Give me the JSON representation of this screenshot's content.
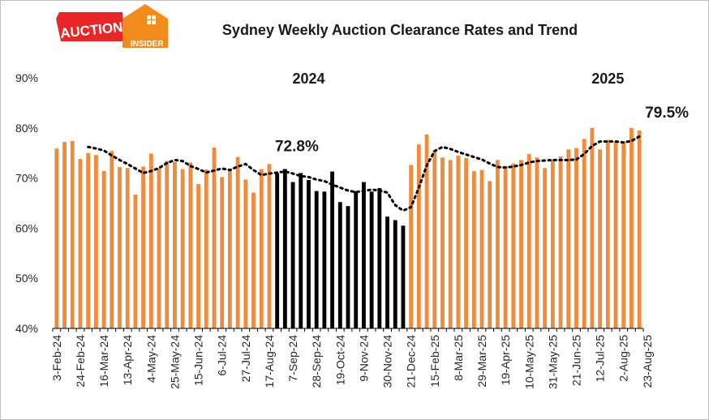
{
  "logo": {
    "line1": "AUCTION",
    "line2": "INSIDER",
    "colors": {
      "red": "#e8262a",
      "orange": "#f28c1c",
      "white": "#ffffff"
    }
  },
  "chart_data": {
    "type": "bar",
    "title": "Sydney Weekly Auction  Clearance Rates and Trend",
    "ylim": [
      40,
      90
    ],
    "yticks": [
      "40%",
      "50%",
      "60%",
      "70%",
      "80%",
      "90%"
    ],
    "grid": false,
    "x_tick_labels": [
      "3-Feb-24",
      "24-Feb-24",
      "16-Mar-24",
      "13-Apr-24",
      "4-May-24",
      "25-May-24",
      "15-Jun-24",
      "6-Jul-24",
      "27-Jul-24",
      "17-Aug-24",
      "7-Sep-24",
      "28-Sep-24",
      "19-Oct-24",
      "9-Nov-24",
      "30-Nov-24",
      "21-Dec-24",
      "15-Feb-25",
      "8-Mar-25",
      "29-Mar-25",
      "19-Apr-25",
      "10-May-25",
      "31-May-25",
      "21-Jun-25",
      "12-Jul-25",
      "2-Aug-25",
      "23-Aug-25"
    ],
    "values": [
      75.9,
      77.2,
      77.4,
      73.8,
      75.0,
      74.6,
      71.4,
      75.4,
      72.2,
      72.0,
      66.7,
      72.3,
      74.9,
      71.9,
      73.4,
      73.2,
      71.8,
      73.1,
      68.8,
      71.7,
      76.1,
      70.2,
      71.6,
      74.2,
      69.7,
      67.1,
      71.8,
      72.8,
      71.0,
      71.8,
      69.2,
      71.0,
      69.6,
      67.4,
      67.3,
      71.3,
      65.2,
      64.4,
      67.4,
      69.2,
      67.3,
      68.0,
      62.3,
      61.6,
      60.5,
      72.6,
      76.7,
      78.7,
      75.5,
      74.1,
      73.6,
      74.5,
      74.0,
      71.4,
      71.6,
      69.4,
      73.6,
      72.4,
      72.9,
      73.6,
      74.8,
      74.1,
      72.0,
      73.6,
      74.3,
      75.7,
      76.0,
      77.8,
      80.0,
      75.7,
      77.6,
      77.2,
      77.2,
      80.0,
      79.5
    ],
    "series_colors": {
      "2024_spring": "#000000",
      "other": "#ef8b3e",
      "trend": "#000000"
    },
    "black_range": [
      28,
      44
    ],
    "trend": [
      null,
      null,
      null,
      null,
      76.2,
      75.9,
      75.5,
      74.5,
      73.6,
      72.8,
      71.9,
      71.0,
      71.4,
      72.0,
      73.0,
      73.6,
      73.4,
      72.4,
      71.8,
      71.1,
      71.5,
      71.9,
      71.6,
      72.3,
      72.8,
      71.6,
      70.6,
      70.9,
      71.1,
      71.3,
      70.9,
      70.4,
      70.2,
      69.7,
      69.4,
      68.7,
      68.1,
      67.5,
      67.2,
      67.4,
      67.7,
      67.5,
      67.1,
      64.6,
      63.5,
      64.2,
      68.1,
      72.5,
      75.4,
      76.2,
      75.8,
      75.2,
      74.7,
      74.2,
      73.7,
      72.9,
      72.2,
      72.1,
      72.3,
      72.6,
      73.1,
      73.4,
      73.5,
      73.6,
      73.6,
      73.6,
      73.7,
      74.8,
      76.4,
      77.3,
      77.3,
      77.3,
      77.1,
      77.4,
      78.3
    ],
    "annotations": [
      {
        "text": "72.8%",
        "bar_index": 27
      },
      {
        "text": "79.5%",
        "bar_index": 74
      }
    ],
    "year_labels": [
      {
        "text": "2024",
        "bar_index": 32
      },
      {
        "text": "2025",
        "bar_index": 70
      }
    ]
  }
}
